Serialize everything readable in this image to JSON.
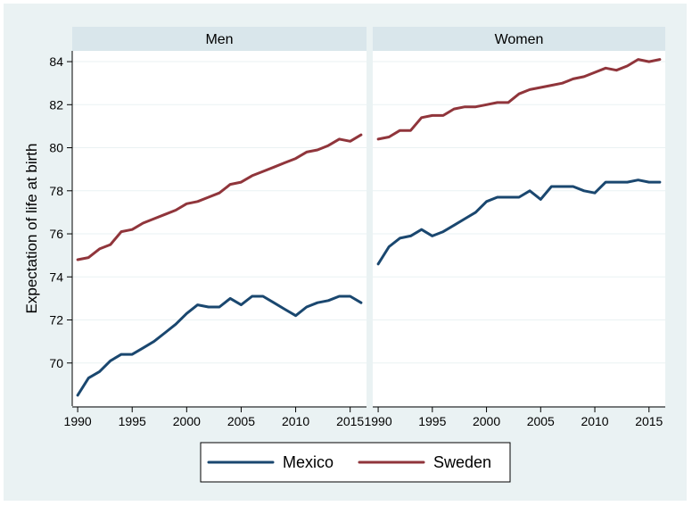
{
  "chart_data": {
    "type": "line",
    "ylabel": "Expectation of life at birth",
    "ylim": [
      68,
      84.5
    ],
    "xlim": [
      1989.5,
      2016.5
    ],
    "y_ticks": [
      70,
      72,
      74,
      76,
      78,
      80,
      82,
      84
    ],
    "x_ticks": [
      1990,
      1995,
      2000,
      2005,
      2010,
      2015
    ],
    "y_tick_labels": [
      "70",
      "72",
      "74",
      "76",
      "78",
      "80",
      "82",
      "84"
    ],
    "x_tick_labels": [
      "1990",
      "1995",
      "2000",
      "2005",
      "2010",
      "2015"
    ],
    "grid": true,
    "legend": {
      "position": "bottom",
      "entries": [
        {
          "name": "Mexico",
          "color": "#1a476f"
        },
        {
          "name": "Sweden",
          "color": "#90353b"
        }
      ]
    },
    "x": [
      1990,
      1991,
      1992,
      1993,
      1994,
      1995,
      1996,
      1997,
      1998,
      1999,
      2000,
      2001,
      2002,
      2003,
      2004,
      2005,
      2006,
      2007,
      2008,
      2009,
      2010,
      2011,
      2012,
      2013,
      2014,
      2015,
      2016
    ],
    "panels": [
      {
        "title": "Men",
        "series": [
          {
            "name": "Mexico",
            "color": "#1a476f",
            "values": [
              68.5,
              69.3,
              69.6,
              70.1,
              70.4,
              70.4,
              70.7,
              71.0,
              71.4,
              71.8,
              72.3,
              72.7,
              72.6,
              72.6,
              73.0,
              72.7,
              73.1,
              73.1,
              72.8,
              72.5,
              72.2,
              72.6,
              72.8,
              72.9,
              73.1,
              73.1,
              72.8
            ]
          },
          {
            "name": "Sweden",
            "color": "#90353b",
            "values": [
              74.8,
              74.9,
              75.3,
              75.5,
              76.1,
              76.2,
              76.5,
              76.7,
              76.9,
              77.1,
              77.4,
              77.5,
              77.7,
              77.9,
              78.3,
              78.4,
              78.7,
              78.9,
              79.1,
              79.3,
              79.5,
              79.8,
              79.9,
              80.1,
              80.4,
              80.3,
              80.6
            ]
          }
        ]
      },
      {
        "title": "Women",
        "series": [
          {
            "name": "Mexico",
            "color": "#1a476f",
            "values": [
              74.6,
              75.4,
              75.8,
              75.9,
              76.2,
              75.9,
              76.1,
              76.4,
              76.7,
              77.0,
              77.5,
              77.7,
              77.7,
              77.7,
              78.0,
              77.6,
              78.2,
              78.2,
              78.2,
              78.0,
              77.9,
              78.4,
              78.4,
              78.4,
              78.5,
              78.4,
              78.4
            ]
          },
          {
            "name": "Sweden",
            "color": "#90353b",
            "values": [
              80.4,
              80.5,
              80.8,
              80.8,
              81.4,
              81.5,
              81.5,
              81.8,
              81.9,
              81.9,
              82.0,
              82.1,
              82.1,
              82.5,
              82.7,
              82.8,
              82.9,
              83.0,
              83.2,
              83.3,
              83.5,
              83.7,
              83.6,
              83.8,
              84.1,
              84.0,
              84.1
            ]
          }
        ]
      }
    ]
  }
}
